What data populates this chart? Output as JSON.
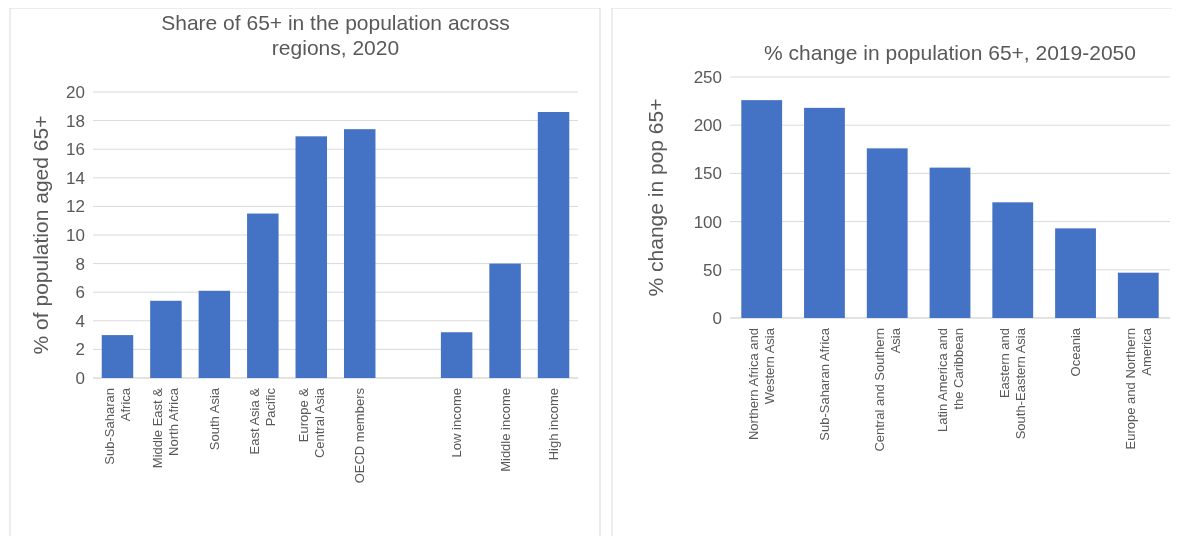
{
  "chart_data": [
    {
      "type": "bar",
      "title": "Share of 65+ in the population across regions, 2020",
      "ylabel": "% of population aged 65+",
      "categories": [
        "Sub-Saharan Africa",
        "Middle East & North Africa",
        "South Asia",
        "East Asia & Pacific",
        "Europe & Central Asia",
        "OECD members",
        null,
        "Low income",
        "Middle income",
        "High income"
      ],
      "values": [
        3.0,
        5.4,
        6.1,
        11.5,
        16.9,
        17.4,
        null,
        3.2,
        8.0,
        18.6
      ],
      "color": "#4472c4",
      "ylim": [
        0,
        20
      ],
      "yticks": [
        0,
        2,
        4,
        6,
        8,
        10,
        12,
        14,
        16,
        18,
        20
      ],
      "grid": "y"
    },
    {
      "type": "bar",
      "title": "% change in population 65+, 2019-2050",
      "ylabel": "% change in pop 65+",
      "categories": [
        "Northern Africa and Western Asia",
        "Sub-Saharan Africa",
        "Central and Southern Asia",
        "Latin America and the Caribbean",
        "Eastern and South-Eastern Asia",
        "Oceania",
        "Europe and Northern America"
      ],
      "values": [
        226,
        218,
        176,
        156,
        120,
        93,
        47
      ],
      "color": "#4472c4",
      "ylim": [
        0,
        250
      ],
      "yticks": [
        0,
        50,
        100,
        150,
        200,
        250
      ],
      "grid": "y"
    }
  ]
}
